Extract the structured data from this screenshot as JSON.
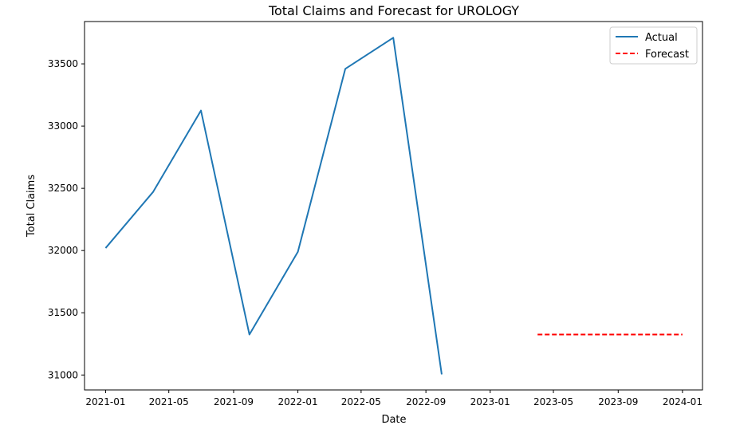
{
  "chart_data": {
    "type": "line",
    "title": "Total Claims and Forecast for UROLOGY",
    "xlabel": "Date",
    "ylabel": "Total Claims",
    "xlim": [
      "2020-11-22",
      "2024-02-08"
    ],
    "ylim": [
      30880,
      33840
    ],
    "x_ticks": [
      {
        "date": "2021-01-01",
        "label": "2021-01"
      },
      {
        "date": "2021-05-01",
        "label": "2021-05"
      },
      {
        "date": "2021-09-01",
        "label": "2021-09"
      },
      {
        "date": "2022-01-01",
        "label": "2022-01"
      },
      {
        "date": "2022-05-01",
        "label": "2022-05"
      },
      {
        "date": "2022-09-01",
        "label": "2022-09"
      },
      {
        "date": "2023-01-01",
        "label": "2023-01"
      },
      {
        "date": "2023-05-01",
        "label": "2023-05"
      },
      {
        "date": "2023-09-01",
        "label": "2023-09"
      },
      {
        "date": "2024-01-01",
        "label": "2024-01"
      }
    ],
    "y_ticks": [
      31000,
      31500,
      32000,
      32500,
      33000,
      33500
    ],
    "grid": false,
    "legend_position": "top-right",
    "series": [
      {
        "name": "Actual",
        "color": "#1f77b4",
        "style": "solid",
        "points": [
          {
            "x": "2021-01-01",
            "y": 32020
          },
          {
            "x": "2021-04-01",
            "y": 32470
          },
          {
            "x": "2021-07-01",
            "y": 33125
          },
          {
            "x": "2021-10-01",
            "y": 31325
          },
          {
            "x": "2022-01-01",
            "y": 31990
          },
          {
            "x": "2022-04-01",
            "y": 33460
          },
          {
            "x": "2022-07-01",
            "y": 33710
          },
          {
            "x": "2022-10-01",
            "y": 31005
          }
        ]
      },
      {
        "name": "Forecast",
        "color": "#ff0000",
        "style": "dashed",
        "points": [
          {
            "x": "2023-04-01",
            "y": 31325
          },
          {
            "x": "2023-07-01",
            "y": 31325
          },
          {
            "x": "2023-10-01",
            "y": 31325
          },
          {
            "x": "2024-01-01",
            "y": 31325
          }
        ]
      }
    ]
  }
}
